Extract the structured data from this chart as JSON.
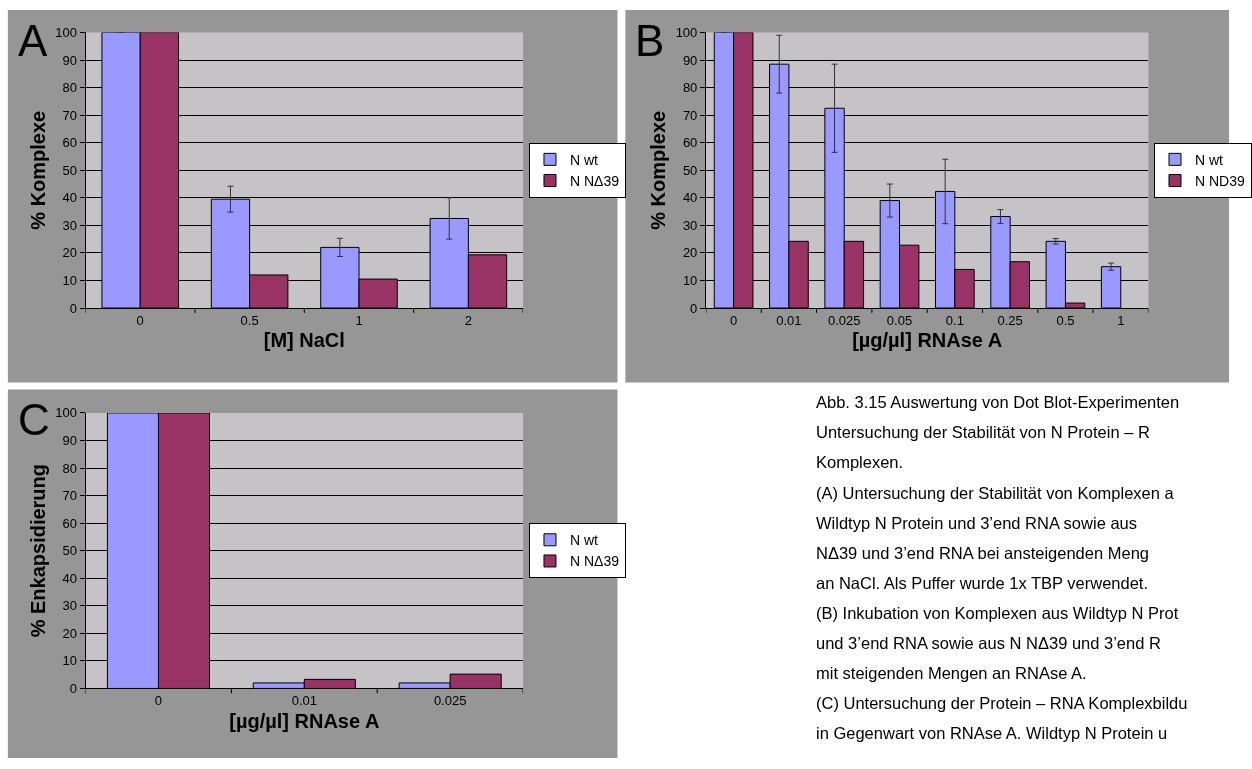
{
  "chart_data": [
    {
      "type": "bar",
      "title": "A",
      "xlabel": "[M] NaCl",
      "ylabel": "% Komplexe",
      "categories": [
        "0",
        "0.5",
        "1",
        "2"
      ],
      "ylim": [
        0,
        100
      ],
      "yticks": [
        0,
        10,
        20,
        30,
        40,
        50,
        60,
        70,
        80,
        90,
        100
      ],
      "grid": "y",
      "legend": "right",
      "series": [
        {
          "name": "N wt",
          "color": "#9999ff",
          "values": [
            100,
            39.5,
            22,
            32.5
          ],
          "errors": [
            null,
            4.7,
            3.3,
            7.5
          ]
        },
        {
          "name": "N NΔ39",
          "color": "#993366",
          "values": [
            100,
            12,
            10.5,
            19.3
          ]
        }
      ]
    },
    {
      "type": "bar",
      "title": "B",
      "xlabel": "[µg/µl] RNAse A",
      "ylabel": "% Komplexe",
      "categories": [
        "0",
        "0.01",
        "0.025",
        "0.05",
        "0.1",
        "0.25",
        "0.5",
        "1"
      ],
      "ylim": [
        0,
        100
      ],
      "yticks": [
        0,
        10,
        20,
        30,
        40,
        50,
        60,
        70,
        80,
        90,
        100
      ],
      "grid": "y",
      "legend": "right",
      "series": [
        {
          "name": "N wt",
          "color": "#9999ff",
          "values": [
            100,
            88.5,
            72.5,
            39,
            42.3,
            33.2,
            24.2,
            15
          ],
          "errors": [
            null,
            10.5,
            16,
            6,
            11.7,
            2.5,
            1,
            1.3
          ]
        },
        {
          "name": "N ND39",
          "color": "#993366",
          "values": [
            100,
            24.2,
            24.2,
            22.8,
            14,
            16.8,
            1.8,
            null
          ]
        }
      ]
    },
    {
      "type": "bar",
      "title": "C",
      "xlabel": "[µg/µl] RNAse A",
      "ylabel": "% Enkapsidierung",
      "categories": [
        "0",
        "0.01",
        "0.025"
      ],
      "ylim": [
        0,
        100
      ],
      "yticks": [
        0,
        10,
        20,
        30,
        40,
        50,
        60,
        70,
        80,
        90,
        100
      ],
      "grid": "y",
      "legend": "right",
      "series": [
        {
          "name": "N wt",
          "color": "#9999ff",
          "values": [
            100,
            2,
            2
          ]
        },
        {
          "name": "N NΔ39",
          "color": "#993366",
          "values": [
            100,
            3.3,
            5.2
          ]
        }
      ]
    },
    {
      "type": "other",
      "annotations": [
        "Abb. 3.15 Auswertung von Dot Blot-Experimenten",
        "Untersuchung der Stabilität von N Protein – R",
        "Komplexen.",
        "(A) Untersuchung der Stabilität von Komplexen a",
        "Wildtyp N Protein und 3’end RNA sowie aus",
        "NΔ39 und 3’end RNA bei ansteigenden Meng",
        "an NaCl. Als Puffer wurde 1x TBP verwendet.",
        "(B) Inkubation von Komplexen aus Wildtyp N Prot",
        "und 3’end RNA sowie aus N NΔ39 und 3’end R",
        "mit steigenden Mengen an RNAse A.",
        "(C) Untersuchung der Protein – RNA Komplexbildu",
        "in Gegenwart von RNAse A. Wildtyp N Protein u"
      ]
    }
  ]
}
